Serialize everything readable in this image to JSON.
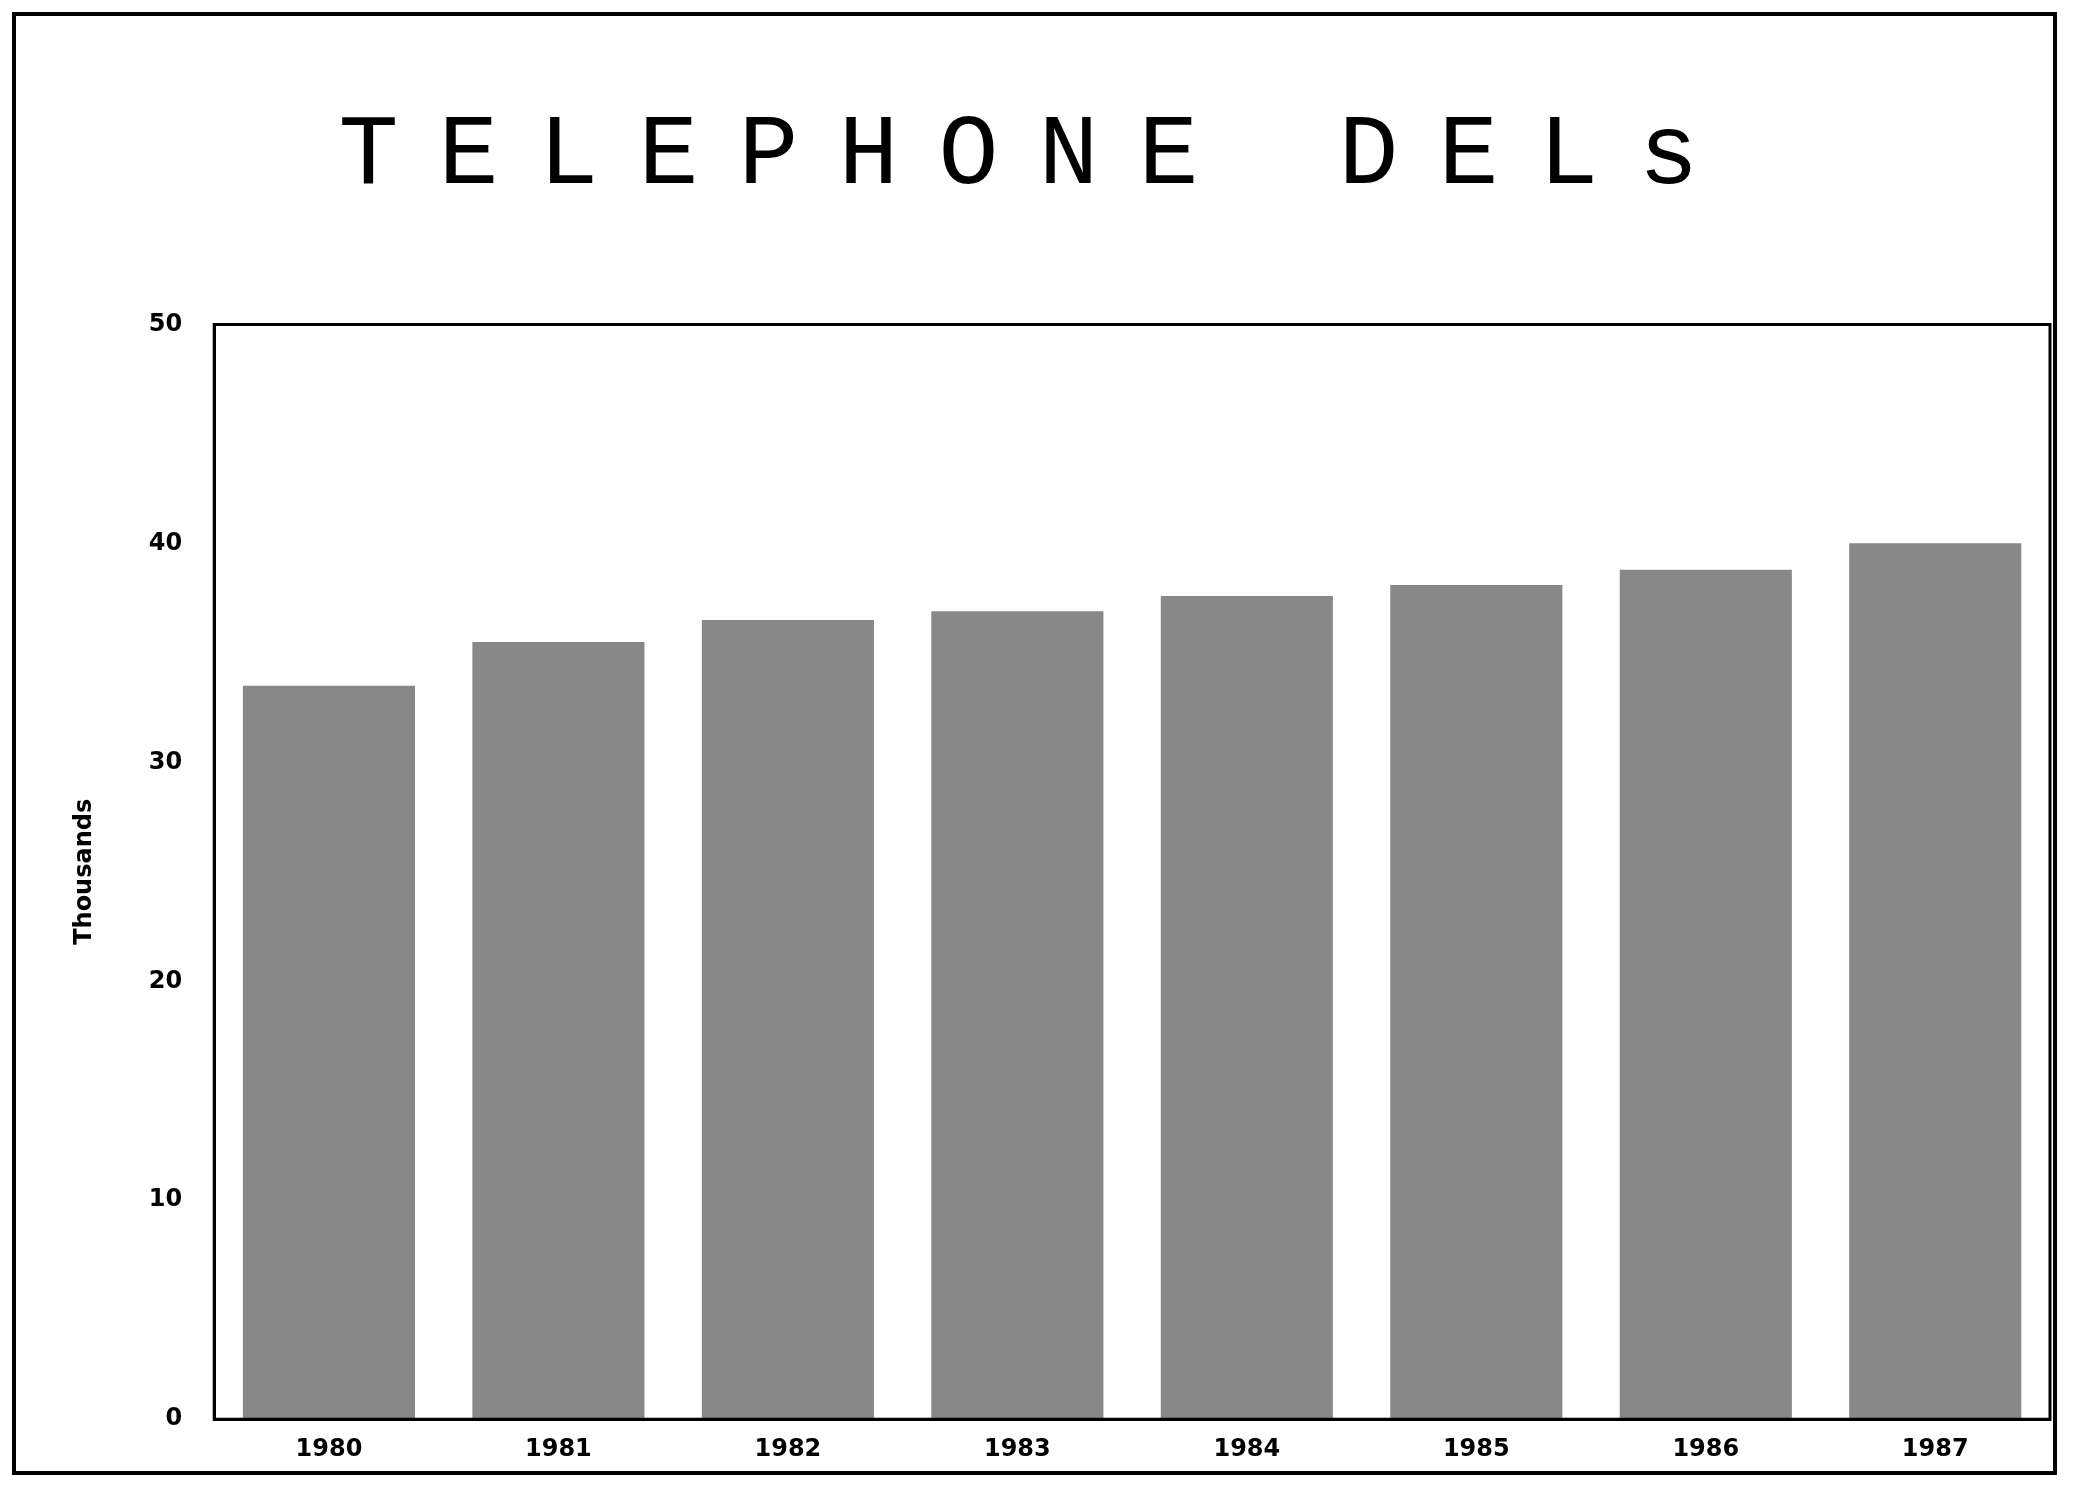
{
  "chart_data": {
    "type": "bar",
    "title": "TELEPHONE DELs",
    "ylabel": "Thousands",
    "categories": [
      "1980",
      "1981",
      "1982",
      "1983",
      "1984",
      "1985",
      "1986",
      "1987"
    ],
    "series": [
      {
        "color": "#888888",
        "values": [
          33.5,
          35.5,
          36.5,
          36.9,
          37.6,
          38.1,
          38.8,
          40.0
        ]
      }
    ],
    "ylim": [
      0,
      50
    ],
    "yticks": [
      0,
      10,
      20,
      30,
      40,
      50
    ],
    "grid": false,
    "legend": false
  }
}
